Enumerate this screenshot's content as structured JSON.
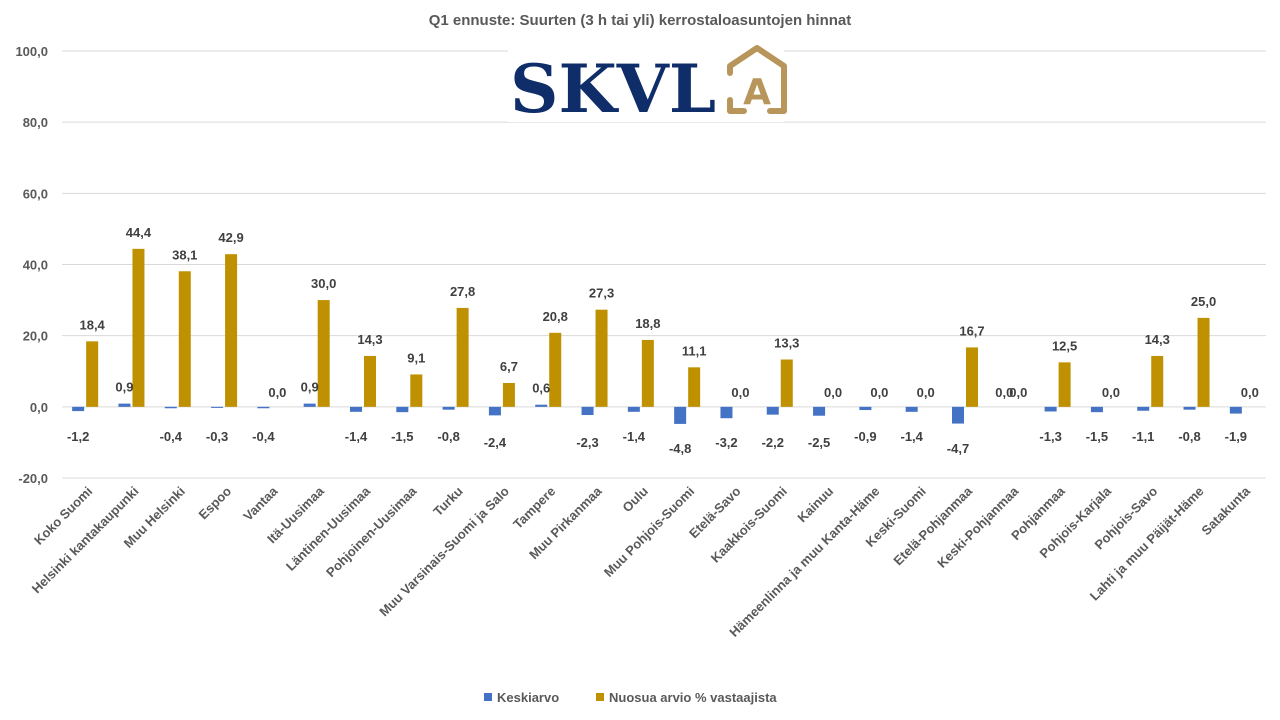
{
  "chart_data": {
    "type": "bar",
    "title": "Q1 ennuste: Suurten (3 h tai yli) kerrostaloasuntojen hinnat",
    "xlabel": "",
    "ylabel": "",
    "ylim": [
      -20,
      100
    ],
    "yticks": [
      -20,
      0,
      20,
      40,
      60,
      80,
      100
    ],
    "ytick_labels": [
      "-20,0",
      "0,0",
      "20,0",
      "40,0",
      "60,0",
      "80,0",
      "100,0"
    ],
    "grid": true,
    "legend_position": "bottom",
    "categories": [
      "Koko Suomi",
      "Helsinki kantakaupunki",
      "Muu Helsinki",
      "Espoo",
      "Vantaa",
      "Itä-Uusimaa",
      "Läntinen-Uusimaa",
      "Pohjoinen-Uusimaa",
      "Turku",
      "Muu Varsinais-Suomi ja Salo",
      "Tampere",
      "Muu Pirkanmaa",
      "Oulu",
      "Muu Pohjois-Suomi",
      "Etelä-Savo",
      "Kaakkois-Suomi",
      "Kainuu",
      "Hämeenlinna ja muu Kanta-Häme",
      "Keski-Suomi",
      "Etelä-Pohjanmaa",
      "Keski-Pohjanmaa",
      "Pohjanmaa",
      "Pohjois-Karjala",
      "Pohjois-Savo",
      "Lahti ja muu Päijät-Häme",
      "Satakunta"
    ],
    "series": [
      {
        "name": "Keskiarvo",
        "color": "#4472c4",
        "values": [
          -1.2,
          0.9,
          -0.4,
          -0.3,
          -0.4,
          0.9,
          -1.4,
          -1.5,
          -0.8,
          -2.4,
          0.6,
          -2.3,
          -1.4,
          -4.8,
          -3.2,
          -2.2,
          -2.5,
          -0.9,
          -1.4,
          -4.7,
          0.0,
          -1.3,
          -1.5,
          -1.1,
          -0.8,
          -1.9
        ],
        "labels": [
          "-1,2",
          "0,9",
          "-0,4",
          "-0,3",
          "-0,4",
          "0,9",
          "-1,4",
          "-1,5",
          "-0,8",
          "-2,4",
          "0,6",
          "-2,3",
          "-1,4",
          "-4,8",
          "-3,2",
          "-2,2",
          "-2,5",
          "-0,9",
          "-1,4",
          "-4,7",
          "0,0",
          "-1,3",
          "-1,5",
          "-1,1",
          "-0,8",
          "-1,9"
        ]
      },
      {
        "name": "Nuosua arvio % vastaajista",
        "color": "#bf9000",
        "values": [
          18.4,
          44.4,
          38.1,
          42.9,
          0.0,
          30.0,
          14.3,
          9.1,
          27.8,
          6.7,
          20.8,
          27.3,
          18.8,
          11.1,
          0.0,
          13.3,
          0.0,
          0.0,
          0.0,
          16.7,
          0.0,
          12.5,
          0.0,
          14.3,
          25.0,
          0.0
        ],
        "labels": [
          "18,4",
          "44,4",
          "38,1",
          "42,9",
          "0,0",
          "30,0",
          "14,3",
          "9,1",
          "27,8",
          "6,7",
          "20,8",
          "27,3",
          "18,8",
          "11,1",
          "0,0",
          "13,3",
          "0,0",
          "0,0",
          "0,0",
          "16,7",
          "0,0",
          "12,5",
          "0,0",
          "14,3",
          "25,0",
          "0,0"
        ]
      }
    ]
  },
  "logo": {
    "text": "SKVL",
    "badge_letter": "A",
    "text_color": "#0f2d69",
    "badge_color": "#b8955a"
  },
  "legend": [
    {
      "label": "Keskiarvo",
      "color": "#4472c4"
    },
    {
      "label": "Nuosua arvio % vastaajista",
      "color": "#bf9000"
    }
  ]
}
